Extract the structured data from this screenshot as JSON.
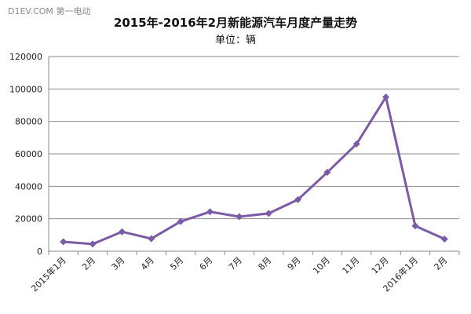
{
  "watermark": "D1EV.COM 第一电动",
  "chart_data": {
    "type": "line",
    "title": "2015年-2016年2月新能源汽车月度产量走势",
    "subtitle": "单位：辆",
    "categories": [
      "2015年1月",
      "2月",
      "3月",
      "4月",
      "5月",
      "6月",
      "7月",
      "8月",
      "9月",
      "10月",
      "11月",
      "12月",
      "2016年1月",
      "2月"
    ],
    "series": [
      {
        "values": [
          5800,
          4400,
          12000,
          7700,
          18300,
          24300,
          21300,
          23300,
          31800,
          48600,
          66100,
          95000,
          15600,
          7500
        ],
        "color": "#7b5ba5"
      }
    ],
    "ylim": [
      0,
      120000
    ],
    "yticks": [
      0,
      20000,
      40000,
      60000,
      80000,
      100000,
      120000
    ],
    "grid": true,
    "legend": "none"
  }
}
